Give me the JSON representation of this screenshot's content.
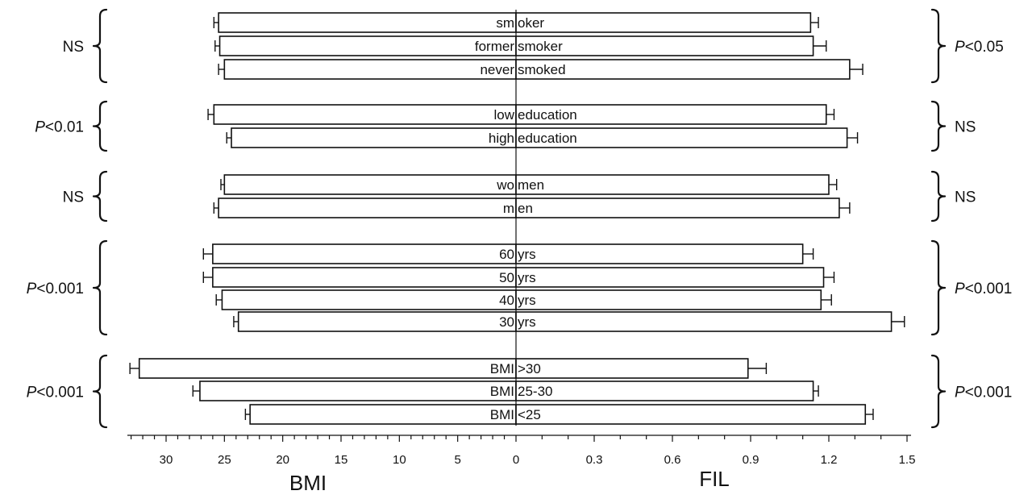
{
  "chart_data": {
    "type": "bar",
    "orientation": "horizontal-back-to-back",
    "left_axis": {
      "label": "BMI",
      "lim": [
        0,
        34
      ],
      "ticks": [
        "30",
        "25",
        "20",
        "15",
        "10",
        "5",
        "0"
      ],
      "tick_values": [
        30,
        25,
        20,
        15,
        10,
        5,
        0
      ]
    },
    "right_axis": {
      "label": "FIL",
      "lim": [
        0,
        1.5
      ],
      "ticks": [
        "0.3",
        "0.6",
        "0.9",
        "1.2",
        "1.5"
      ],
      "tick_values": [
        0.3,
        0.6,
        0.9,
        1.2,
        1.5
      ]
    },
    "categories": [
      {
        "left": "sm",
        "right": "oker",
        "bmi": 25.5,
        "bmi_err": 0.4,
        "fil": 1.13,
        "fil_err": 0.03
      },
      {
        "left": "former",
        "right": "smoker",
        "bmi": 25.4,
        "bmi_err": 0.4,
        "fil": 1.14,
        "fil_err": 0.05
      },
      {
        "left": "never",
        "right": "smoked",
        "bmi": 25.0,
        "bmi_err": 0.5,
        "fil": 1.28,
        "fil_err": 0.05
      },
      {
        "left": "low",
        "right": "education",
        "bmi": 25.9,
        "bmi_err": 0.5,
        "fil": 1.19,
        "fil_err": 0.03
      },
      {
        "left": "high",
        "right": "education",
        "bmi": 24.4,
        "bmi_err": 0.4,
        "fil": 1.27,
        "fil_err": 0.04
      },
      {
        "left": "wo",
        "right": "men",
        "bmi": 25.0,
        "bmi_err": 0.3,
        "fil": 1.2,
        "fil_err": 0.03
      },
      {
        "left": "m",
        "right": "en",
        "bmi": 25.5,
        "bmi_err": 0.4,
        "fil": 1.24,
        "fil_err": 0.04
      },
      {
        "left": "60",
        "right": "yrs",
        "bmi": 26.0,
        "bmi_err": 0.8,
        "fil": 1.1,
        "fil_err": 0.04
      },
      {
        "left": "50",
        "right": "yrs",
        "bmi": 26.0,
        "bmi_err": 0.8,
        "fil": 1.18,
        "fil_err": 0.04
      },
      {
        "left": "40",
        "right": "yrs",
        "bmi": 25.2,
        "bmi_err": 0.5,
        "fil": 1.17,
        "fil_err": 0.04
      },
      {
        "left": "30",
        "right": "yrs",
        "bmi": 23.8,
        "bmi_err": 0.4,
        "fil": 1.44,
        "fil_err": 0.05
      },
      {
        "left": "BMI",
        "right": ">30",
        "bmi": 32.3,
        "bmi_err": 0.8,
        "fil": 0.89,
        "fil_err": 0.07
      },
      {
        "left": "BMI",
        "right": "25-30",
        "bmi": 27.1,
        "bmi_err": 0.6,
        "fil": 1.14,
        "fil_err": 0.02
      },
      {
        "left": "BMI",
        "right": "<25",
        "bmi": 22.8,
        "bmi_err": 0.4,
        "fil": 1.34,
        "fil_err": 0.03
      }
    ],
    "groups": [
      {
        "rows": [
          0,
          1,
          2
        ],
        "left_sig": "NS",
        "right_sig_prefix": "P",
        "right_sig": "<0.05"
      },
      {
        "rows": [
          3,
          4
        ],
        "left_sig_prefix": "P",
        "left_sig": "<0.01",
        "right_sig": "NS"
      },
      {
        "rows": [
          5,
          6
        ],
        "left_sig": "NS",
        "right_sig": "NS"
      },
      {
        "rows": [
          7,
          8,
          9,
          10
        ],
        "left_sig_prefix": "P",
        "left_sig": "<0.001",
        "right_sig_prefix": "P",
        "right_sig": "<0.001"
      },
      {
        "rows": [
          11,
          12,
          13
        ],
        "left_sig_prefix": "P",
        "left_sig": "<0.001",
        "right_sig_prefix": "P",
        "right_sig": "<0.001"
      }
    ]
  }
}
